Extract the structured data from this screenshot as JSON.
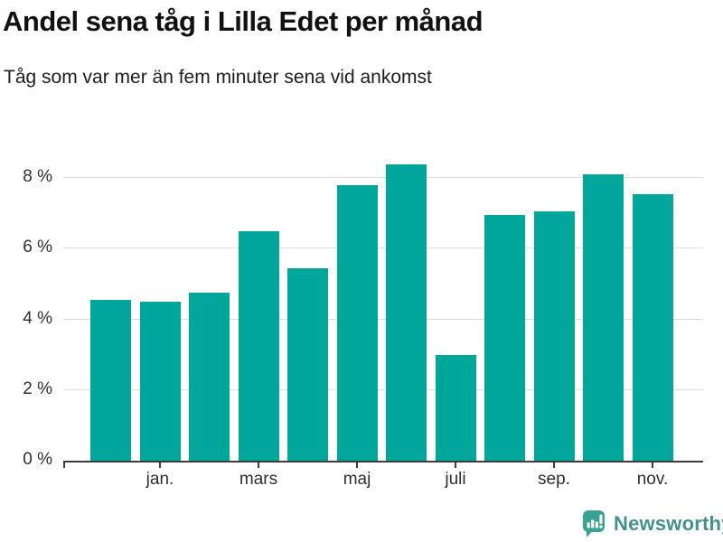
{
  "header": {
    "title": "Andel sena tåg i Lilla Edet per månad",
    "subtitle": "Tåg som var mer än fem minuter sena vid ankomst"
  },
  "chart_data": {
    "type": "bar",
    "title": "Andel sena tåg i Lilla Edet per månad",
    "subtitle": "Tåg som var mer än fem minuter sena vid ankomst",
    "unit": "%",
    "categories": [
      "",
      "jan.",
      "",
      "mars",
      "",
      "maj",
      "",
      "juli",
      "",
      "sep.",
      "",
      "nov."
    ],
    "values": [
      4.55,
      4.5,
      4.75,
      6.5,
      5.45,
      7.8,
      8.4,
      3.0,
      6.95,
      7.05,
      8.1,
      7.55
    ],
    "y_ticks": [
      {
        "value": 0,
        "label": "0 %"
      },
      {
        "value": 2,
        "label": "2 %"
      },
      {
        "value": 4,
        "label": "4 %"
      },
      {
        "value": 6,
        "label": "6 %"
      },
      {
        "value": 8,
        "label": "8 %"
      }
    ],
    "ylim": [
      0,
      8.6
    ],
    "grid": true,
    "legend": "none",
    "bar_color": "#00a69a",
    "axis_color": "#3d3d3d",
    "grid_color": "#dcdcdc",
    "label_color": "#2e2e2e"
  },
  "footer": {
    "brand": "Newsworthy",
    "brand_color": "#44928e",
    "icon": "newsworthy-logo-icon",
    "icon_color": "#3aa295"
  }
}
